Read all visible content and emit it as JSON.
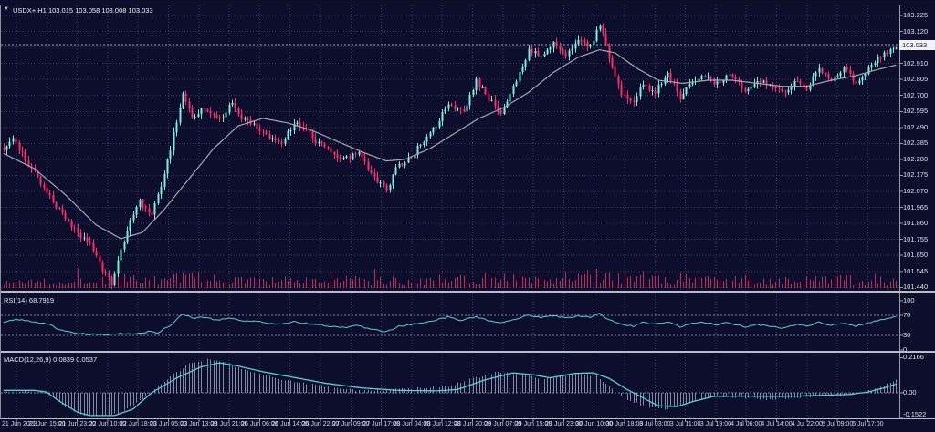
{
  "window": {
    "dropdown_icon": "▼",
    "symbol": "USDX+,H1",
    "ohlc": "103.015 103.058 103.008 103.033"
  },
  "rsi_panel": {
    "label": "RSI(14) 68.7919"
  },
  "macd_panel": {
    "label": "MACD(12,26,9) 0.0839 0.0537"
  },
  "price_tag": {
    "label": "103.033"
  },
  "colors": {
    "background": "#0c0e2c",
    "grid": "#363963",
    "bull": "#80eadc",
    "bear": "#f72f6f",
    "volume": "#c42a5f",
    "ma_line": "#a6a6b2",
    "indicator_line": "#58cfda",
    "macd_histogram": "#9aa0b8",
    "level_dash": "#7d81a0",
    "axis_text": "#dfe1ea",
    "divider": "#b9bcca",
    "price_tag_bg": "#f2f3f7",
    "price_tag_text": "#11143a"
  },
  "chart_data": {
    "type": "candlestick",
    "symbol": "USDX+",
    "timeframe": "H1",
    "title": "USDX+,H1 103.015 103.058 103.008 103.033",
    "bars": 290,
    "ohlc_display": {
      "open": 103.015,
      "high": 103.058,
      "low": 103.008,
      "close": 103.033
    },
    "current_price": 103.033,
    "price_axis": {
      "min": 101.44,
      "max": 103.225,
      "tick_step": 0.105,
      "labels": [
        "103.225",
        "103.120",
        "103.015",
        "102.910",
        "102.805",
        "102.700",
        "102.595",
        "102.490",
        "102.385",
        "102.280",
        "102.175",
        "102.070",
        "101.965",
        "101.860",
        "101.755",
        "101.650",
        "101.545",
        "101.440"
      ]
    },
    "time_labels": [
      "21 Jun 2023",
      "21 Jun 15:00",
      "21 Jun 23:00",
      "22 Jun 10:00",
      "22 Jun 18:00",
      "23 Jun 05:00",
      "23 Jun 13:00",
      "23 Jun 21:00",
      "26 Jun 06:00",
      "26 Jun 14:00",
      "26 Jun 22:00",
      "27 Jun 09:00",
      "27 Jun 17:00",
      "28 Jun 04:00",
      "28 Jun 12:00",
      "28 Jun 20:00",
      "29 Jun 07:00",
      "29 Jun 15:00",
      "29 Jun 23:00",
      "30 Jun 10:00",
      "30 Jun 18:00",
      "3 Jul 03:00",
      "3 Jul 11:00",
      "3 Jul 19:00",
      "4 Jul 06:00",
      "4 Jul 14:00",
      "4 Jul 22:00",
      "5 Jul 09:00",
      "5 Jul 17:00"
    ],
    "price_path": [
      [
        0,
        102.35
      ],
      [
        3,
        102.42
      ],
      [
        8,
        102.25
      ],
      [
        13,
        102.1
      ],
      [
        18,
        101.95
      ],
      [
        22,
        101.83
      ],
      [
        28,
        101.72
      ],
      [
        32,
        101.55
      ],
      [
        35,
        101.47
      ],
      [
        39,
        101.75
      ],
      [
        41,
        101.9
      ],
      [
        44,
        102.0
      ],
      [
        48,
        101.92
      ],
      [
        51,
        102.1
      ],
      [
        54,
        102.35
      ],
      [
        58,
        102.72
      ],
      [
        61,
        102.55
      ],
      [
        65,
        102.62
      ],
      [
        70,
        102.55
      ],
      [
        74,
        102.65
      ],
      [
        77,
        102.55
      ],
      [
        81,
        102.5
      ],
      [
        86,
        102.43
      ],
      [
        90,
        102.38
      ],
      [
        94,
        102.52
      ],
      [
        98,
        102.48
      ],
      [
        101,
        102.4
      ],
      [
        106,
        102.33
      ],
      [
        110,
        102.28
      ],
      [
        115,
        102.32
      ],
      [
        119,
        102.18
      ],
      [
        124,
        102.08
      ],
      [
        127,
        102.22
      ],
      [
        132,
        102.3
      ],
      [
        135,
        102.38
      ],
      [
        140,
        102.5
      ],
      [
        144,
        102.65
      ],
      [
        149,
        102.58
      ],
      [
        153,
        102.8
      ],
      [
        157,
        102.68
      ],
      [
        161,
        102.58
      ],
      [
        165,
        102.75
      ],
      [
        170,
        103.0
      ],
      [
        174,
        102.95
      ],
      [
        178,
        103.05
      ],
      [
        182,
        102.97
      ],
      [
        186,
        103.05
      ],
      [
        190,
        103.02
      ],
      [
        193,
        103.18
      ],
      [
        196,
        102.95
      ],
      [
        200,
        102.72
      ],
      [
        204,
        102.65
      ],
      [
        207,
        102.78
      ],
      [
        211,
        102.72
      ],
      [
        215,
        102.85
      ],
      [
        219,
        102.68
      ],
      [
        223,
        102.8
      ],
      [
        227,
        102.82
      ],
      [
        231,
        102.78
      ],
      [
        235,
        102.85
      ],
      [
        240,
        102.72
      ],
      [
        244,
        102.8
      ],
      [
        249,
        102.75
      ],
      [
        252,
        102.72
      ],
      [
        257,
        102.8
      ],
      [
        260,
        102.75
      ],
      [
        264,
        102.88
      ],
      [
        268,
        102.8
      ],
      [
        272,
        102.88
      ],
      [
        276,
        102.78
      ],
      [
        279,
        102.85
      ],
      [
        283,
        102.95
      ],
      [
        287,
        103.0
      ],
      [
        289,
        103.03
      ]
    ],
    "ma_path": [
      [
        0,
        102.32
      ],
      [
        10,
        102.22
      ],
      [
        20,
        102.05
      ],
      [
        30,
        101.85
      ],
      [
        38,
        101.76
      ],
      [
        45,
        101.8
      ],
      [
        52,
        101.95
      ],
      [
        60,
        102.15
      ],
      [
        68,
        102.35
      ],
      [
        76,
        102.5
      ],
      [
        84,
        102.55
      ],
      [
        92,
        102.52
      ],
      [
        100,
        102.47
      ],
      [
        108,
        102.4
      ],
      [
        116,
        102.33
      ],
      [
        124,
        102.27
      ],
      [
        130,
        102.28
      ],
      [
        138,
        102.35
      ],
      [
        146,
        102.45
      ],
      [
        154,
        102.55
      ],
      [
        162,
        102.62
      ],
      [
        170,
        102.72
      ],
      [
        178,
        102.85
      ],
      [
        186,
        102.95
      ],
      [
        193,
        103.0
      ],
      [
        198,
        102.98
      ],
      [
        205,
        102.88
      ],
      [
        212,
        102.8
      ],
      [
        220,
        102.78
      ],
      [
        228,
        102.8
      ],
      [
        236,
        102.8
      ],
      [
        244,
        102.78
      ],
      [
        252,
        102.76
      ],
      [
        260,
        102.76
      ],
      [
        268,
        102.8
      ],
      [
        276,
        102.83
      ],
      [
        283,
        102.87
      ],
      [
        289,
        102.9
      ]
    ],
    "volume_envelope": [
      [
        0,
        0.3
      ],
      [
        10,
        0.5
      ],
      [
        20,
        0.4
      ],
      [
        35,
        0.7
      ],
      [
        45,
        0.4
      ],
      [
        58,
        0.8
      ],
      [
        70,
        0.5
      ],
      [
        85,
        0.45
      ],
      [
        100,
        0.4
      ],
      [
        115,
        0.5
      ],
      [
        125,
        0.45
      ],
      [
        140,
        0.55
      ],
      [
        153,
        0.7
      ],
      [
        165,
        0.6
      ],
      [
        178,
        0.55
      ],
      [
        190,
        0.8
      ],
      [
        200,
        0.6
      ],
      [
        210,
        0.5
      ],
      [
        219,
        0.65
      ],
      [
        230,
        0.45
      ],
      [
        244,
        0.5
      ],
      [
        258,
        0.45
      ],
      [
        270,
        0.5
      ],
      [
        280,
        0.55
      ],
      [
        289,
        0.6
      ]
    ],
    "indicators": [
      {
        "name": "RSI",
        "params": [
          14
        ],
        "value": 68.7919,
        "range": [
          0,
          100
        ],
        "levels": [
          70,
          30
        ],
        "axis_labels": [
          "100",
          "70",
          "30",
          "0"
        ],
        "path": [
          [
            0,
            55
          ],
          [
            4,
            63
          ],
          [
            9,
            58
          ],
          [
            14,
            54
          ],
          [
            18,
            42
          ],
          [
            22,
            36
          ],
          [
            27,
            32
          ],
          [
            33,
            31
          ],
          [
            38,
            34
          ],
          [
            43,
            32
          ],
          [
            47,
            38
          ],
          [
            50,
            35
          ],
          [
            54,
            50
          ],
          [
            58,
            74
          ],
          [
            61,
            65
          ],
          [
            65,
            66
          ],
          [
            69,
            61
          ],
          [
            73,
            65
          ],
          [
            77,
            60
          ],
          [
            82,
            58
          ],
          [
            86,
            55
          ],
          [
            90,
            52
          ],
          [
            94,
            58
          ],
          [
            98,
            54
          ],
          [
            103,
            51
          ],
          [
            107,
            47
          ],
          [
            111,
            46
          ],
          [
            115,
            50
          ],
          [
            119,
            42
          ],
          [
            124,
            37
          ],
          [
            128,
            48
          ],
          [
            132,
            52
          ],
          [
            136,
            56
          ],
          [
            140,
            61
          ],
          [
            144,
            67
          ],
          [
            148,
            60
          ],
          [
            153,
            68
          ],
          [
            157,
            59
          ],
          [
            161,
            54
          ],
          [
            165,
            62
          ],
          [
            170,
            71
          ],
          [
            174,
            66
          ],
          [
            178,
            70
          ],
          [
            182,
            65
          ],
          [
            186,
            69
          ],
          [
            190,
            66
          ],
          [
            193,
            74
          ],
          [
            196,
            61
          ],
          [
            200,
            52
          ],
          [
            204,
            48
          ],
          [
            207,
            56
          ],
          [
            211,
            52
          ],
          [
            215,
            58
          ],
          [
            219,
            47
          ],
          [
            223,
            55
          ],
          [
            227,
            56
          ],
          [
            231,
            51
          ],
          [
            235,
            56
          ],
          [
            240,
            46
          ],
          [
            244,
            52
          ],
          [
            249,
            47
          ],
          [
            252,
            44
          ],
          [
            257,
            52
          ],
          [
            260,
            48
          ],
          [
            264,
            56
          ],
          [
            268,
            50
          ],
          [
            272,
            55
          ],
          [
            276,
            48
          ],
          [
            279,
            53
          ],
          [
            283,
            60
          ],
          [
            287,
            64
          ],
          [
            289,
            68.8
          ]
        ]
      },
      {
        "name": "MACD",
        "params": [
          12,
          26,
          9
        ],
        "values": [
          0.0839,
          0.0537
        ],
        "axis_labels": [
          "0.2166",
          "0.00",
          "-0.1522"
        ],
        "signal_path": [
          [
            0,
            0.015
          ],
          [
            10,
            0.015
          ],
          [
            14,
            0.005
          ],
          [
            18,
            -0.05
          ],
          [
            24,
            -0.12
          ],
          [
            28,
            -0.14
          ],
          [
            36,
            -0.14
          ],
          [
            42,
            -0.1
          ],
          [
            48,
            0.0
          ],
          [
            56,
            0.09
          ],
          [
            64,
            0.16
          ],
          [
            70,
            0.185
          ],
          [
            76,
            0.165
          ],
          [
            84,
            0.13
          ],
          [
            94,
            0.095
          ],
          [
            104,
            0.06
          ],
          [
            116,
            0.03
          ],
          [
            128,
            0.015
          ],
          [
            140,
            0.012
          ],
          [
            147,
            0.02
          ],
          [
            156,
            0.08
          ],
          [
            165,
            0.123
          ],
          [
            172,
            0.11
          ],
          [
            177,
            0.092
          ],
          [
            185,
            0.12
          ],
          [
            191,
            0.123
          ],
          [
            196,
            0.09
          ],
          [
            202,
            0.02
          ],
          [
            206,
            -0.02
          ],
          [
            212,
            -0.08
          ],
          [
            218,
            -0.085
          ],
          [
            224,
            -0.05
          ],
          [
            230,
            -0.022
          ],
          [
            240,
            -0.02
          ],
          [
            250,
            -0.022
          ],
          [
            258,
            -0.02
          ],
          [
            266,
            -0.015
          ],
          [
            274,
            -0.01
          ],
          [
            280,
            0.005
          ],
          [
            285,
            0.03
          ],
          [
            289,
            0.054
          ]
        ],
        "histogram_path": [
          [
            0,
            0.01
          ],
          [
            12,
            0.005
          ],
          [
            16,
            -0.02
          ],
          [
            20,
            -0.09
          ],
          [
            26,
            -0.135
          ],
          [
            32,
            -0.145
          ],
          [
            38,
            -0.12
          ],
          [
            44,
            -0.05
          ],
          [
            48,
            0.01
          ],
          [
            54,
            0.1
          ],
          [
            60,
            0.18
          ],
          [
            66,
            0.21
          ],
          [
            72,
            0.19
          ],
          [
            78,
            0.14
          ],
          [
            86,
            0.1
          ],
          [
            94,
            0.07
          ],
          [
            104,
            0.04
          ],
          [
            114,
            0.015
          ],
          [
            126,
            0.02
          ],
          [
            134,
            0.03
          ],
          [
            144,
            0.04
          ],
          [
            152,
            0.09
          ],
          [
            160,
            0.13
          ],
          [
            168,
            0.12
          ],
          [
            174,
            0.08
          ],
          [
            180,
            0.1
          ],
          [
            186,
            0.12
          ],
          [
            192,
            0.1
          ],
          [
            197,
            0.03
          ],
          [
            202,
            -0.04
          ],
          [
            208,
            -0.09
          ],
          [
            214,
            -0.1
          ],
          [
            220,
            -0.07
          ],
          [
            226,
            -0.04
          ],
          [
            232,
            -0.02
          ],
          [
            240,
            -0.03
          ],
          [
            248,
            -0.04
          ],
          [
            256,
            -0.03
          ],
          [
            264,
            -0.02
          ],
          [
            272,
            -0.015
          ],
          [
            278,
            0.0
          ],
          [
            283,
            0.03
          ],
          [
            287,
            0.06
          ],
          [
            289,
            0.084
          ]
        ]
      }
    ]
  }
}
